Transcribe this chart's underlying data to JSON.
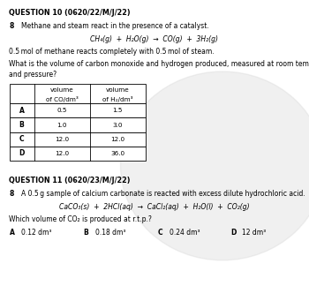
{
  "bg_color": "#ffffff",
  "watermark_color": "#cccccc",
  "q10_header": "QUESTION 10 (0620/22/M/J/22)",
  "q10_num": "8",
  "q10_line1": "Methane and steam react in the presence of a catalyst.",
  "q10_equation": "CH₄(g)  +  H₂O(g)  →  CO(g)  +  3H₂(g)",
  "q10_given": "0.5 mol of methane reacts completely with 0.5 mol of steam.",
  "q10_question_l1": "What is the volume of carbon monoxide and hydrogen produced, measured at room temperature",
  "q10_question_l2": "and pressure?",
  "table_headers_col1": [
    "volume",
    "of CO/dm³"
  ],
  "table_headers_col2": [
    "volume",
    "of H₂/dm³"
  ],
  "table_rows": [
    [
      "A",
      "0.5",
      "1.5"
    ],
    [
      "B",
      "1.0",
      "3.0"
    ],
    [
      "C",
      "12.0",
      "12.0"
    ],
    [
      "D",
      "12.0",
      "36.0"
    ]
  ],
  "q11_header": "QUESTION 11 (0620/23/M/J/22)",
  "q11_num": "8",
  "q11_line1": "A 0.5 g sample of calcium carbonate is reacted with excess dilute hydrochloric acid.",
  "q11_equation": "CaCO₃(s)  +  2HCl(aq)  →  CaCl₂(aq)  +  H₂O(l)  +  CO₂(g)",
  "q11_question": "Which volume of CO₂ is produced at r.t.p.?",
  "q11_opts": [
    "A",
    "0.12 dm³",
    "B",
    "0.18 dm³",
    "C",
    "0.24 dm³",
    "D",
    "12 dm³"
  ],
  "fs_header": 5.8,
  "fs_body": 5.5,
  "fs_eq": 5.5,
  "fs_table": 5.2
}
